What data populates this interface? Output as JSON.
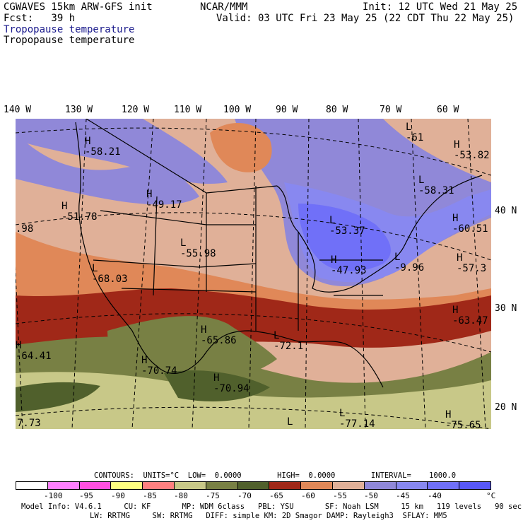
{
  "header": {
    "model": "CGWAVES 15km ARW-GFS init",
    "center": "NCAR/MMM",
    "init": "Init: 12 UTC Wed 21 May 25",
    "fcst": "Fcst:   39 h",
    "valid": "Valid: 03 UTC Fri 23 May 25 (22 CDT Thu 22 May 25)",
    "field_line_1": "Tropopause temperature",
    "field_line_2": "Tropopause temperature"
  },
  "longitude_labels": [
    "140 W",
    "130 W",
    "120 W",
    "110 W",
    "100 W",
    "90 W",
    "80 W",
    "70 W",
    "60 W"
  ],
  "latitude_labels": [
    "40 N",
    "30 N",
    "20 N"
  ],
  "map_labels": [
    {
      "text": "H\n-58.21"
    },
    {
      "text": "L\n-61"
    },
    {
      "text": "H\n-53.82"
    },
    {
      "text": "H\n-49.17"
    },
    {
      "text": "H\n-51.78"
    },
    {
      "text": ".98"
    },
    {
      "text": "L\n-58.31"
    },
    {
      "text": "H\n-60.51"
    },
    {
      "text": "L\n-53.37"
    },
    {
      "text": "L\n-55.98"
    },
    {
      "text": "H\n-47.93"
    },
    {
      "text": "L\n-9.96"
    },
    {
      "text": "L\n-68.03"
    },
    {
      "text": "H\n-57.3"
    },
    {
      "text": "H\n-63.47"
    },
    {
      "text": "H\n-65.86"
    },
    {
      "text": "L\n-72.1"
    },
    {
      "text": "H\n-64.41"
    },
    {
      "text": "H\n-70.74"
    },
    {
      "text": "H\n-70.94"
    },
    {
      "text": "L\n-77.14"
    },
    {
      "text": "L"
    },
    {
      "text": "7.73"
    },
    {
      "text": "H\n-75.65"
    }
  ],
  "contours_line": "CONTOURS:  UNITS=°C  LOW=  0.0000        HIGH=  0.0000        INTERVAL=    1000.0",
  "legend": {
    "colors": [
      "#ffffff",
      "#ff80ff",
      "#ff50e0",
      "#ffff80",
      "#ff8080",
      "#c8c888",
      "#788044",
      "#50602c",
      "#a02818",
      "#e08858",
      "#e0b098",
      "#9088d8",
      "#8888f0",
      "#7070f8",
      "#5858f8"
    ],
    "ticks": [
      "-100",
      "-95",
      "-90",
      "-85",
      "-80",
      "-75",
      "-70",
      "-65",
      "-60",
      "-55",
      "-50",
      "-45",
      "-40",
      "°C"
    ]
  },
  "footer_1": "Model Info: V4.6.1     CU: KF       MP: WDM 6class   PBL: YSU       SF: Noah LSM     15 km   119 levels   90 sec",
  "footer_2": "LW: RRTMG     SW: RRTMG   DIFF: simple KM: 2D Smagor DAMP: Rayleigh3  SFLAY: MM5"
}
